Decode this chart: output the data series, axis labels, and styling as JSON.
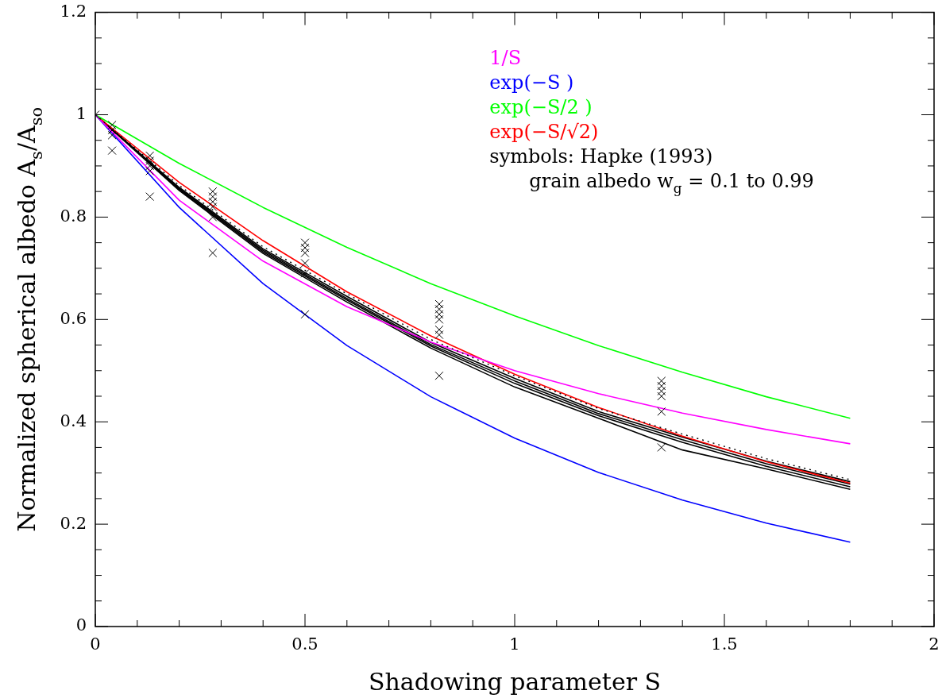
{
  "chart_data": {
    "type": "line",
    "xlabel": "Shadowing parameter S",
    "ylabel": "Normalized spherical albedo A$_{s}$/A$_{so}$",
    "xlim": [
      0,
      2
    ],
    "ylim": [
      0,
      1.2
    ],
    "xticks": [
      0,
      {
        "value": 0.1,
        "label": null
      },
      {
        "value": 0.2,
        "label": null
      },
      {
        "value": 0.3,
        "label": null
      },
      {
        "value": 0.4,
        "label": null
      },
      0.5,
      {
        "value": 0.6,
        "label": null
      },
      {
        "value": 0.7,
        "label": null
      },
      {
        "value": 0.8,
        "label": null
      },
      {
        "value": 0.9,
        "label": null
      },
      1,
      {
        "value": 1.1,
        "label": null
      },
      {
        "value": 1.2,
        "label": null
      },
      {
        "value": 1.3,
        "label": null
      },
      {
        "value": 1.4,
        "label": null
      },
      1.5,
      {
        "value": 1.6,
        "label": null
      },
      {
        "value": 1.7,
        "label": null
      },
      {
        "value": 1.8,
        "label": null
      },
      {
        "value": 1.9,
        "label": null
      },
      2
    ],
    "yticks": [
      0,
      {
        "value": 0.05,
        "label": null
      },
      {
        "value": 0.1,
        "label": null
      },
      {
        "value": 0.15,
        "label": null
      },
      0.2,
      {
        "value": 0.25,
        "label": null
      },
      {
        "value": 0.3,
        "label": null
      },
      {
        "value": 0.35,
        "label": null
      },
      0.4,
      {
        "value": 0.45,
        "label": null
      },
      {
        "value": 0.5,
        "label": null
      },
      {
        "value": 0.55,
        "label": null
      },
      0.6,
      {
        "value": 0.65,
        "label": null
      },
      {
        "value": 0.7,
        "label": null
      },
      {
        "value": 0.75,
        "label": null
      },
      0.8,
      {
        "value": 0.85,
        "label": null
      },
      {
        "value": 0.9,
        "label": null
      },
      {
        "value": 0.95,
        "label": null
      },
      1,
      {
        "value": 1.05,
        "label": null
      },
      {
        "value": 1.1,
        "label": null
      },
      {
        "value": 1.15,
        "label": null
      },
      1.2
    ],
    "x": [
      0,
      0.2,
      0.4,
      0.6,
      0.8,
      1.0,
      1.2,
      1.4,
      1.6,
      1.8
    ],
    "legend": "top right",
    "grid": false,
    "line_style": "solid",
    "marker": "none",
    "series": [
      {
        "name": "1/S",
        "color": "#ff00ff",
        "values": [
          1,
          0.833,
          0.714,
          0.625,
          0.556,
          0.5,
          0.455,
          0.417,
          0.385,
          0.357
        ]
      },
      {
        "name": "exp(−S )",
        "color": "#0000ff",
        "values": [
          1,
          0.819,
          0.67,
          0.549,
          0.449,
          0.368,
          0.301,
          0.247,
          0.202,
          0.165
        ]
      },
      {
        "name": "exp(−S/2 )",
        "color": "#00ff00",
        "values": [
          1,
          0.905,
          0.819,
          0.741,
          0.67,
          0.607,
          0.549,
          0.497,
          0.449,
          0.407
        ]
      },
      {
        "name": "exp(−S/√2)",
        "color": "#ff0000",
        "values": [
          1,
          0.868,
          0.754,
          0.654,
          0.568,
          0.493,
          0.428,
          0.372,
          0.322,
          0.28
        ]
      },
      {
        "color": "#000000",
        "values": [
          1,
          0.858,
          0.738,
          0.645,
          0.555,
          0.485,
          0.42,
          0.37,
          0.323,
          0.283
        ]
      },
      {
        "color": "#000000",
        "values": [
          1,
          0.856,
          0.735,
          0.641,
          0.551,
          0.48,
          0.416,
          0.365,
          0.318,
          0.278
        ]
      },
      {
        "color": "#000000",
        "values": [
          1,
          0.854,
          0.732,
          0.638,
          0.548,
          0.475,
          0.412,
          0.36,
          0.313,
          0.273
        ]
      },
      {
        "color": "#000000",
        "values": [
          1,
          0.852,
          0.729,
          0.634,
          0.544,
          0.468,
          0.407,
          0.345,
          0.308,
          0.268
        ]
      },
      {
        "color": "#000000",
        "line_style": "dotted",
        "values": [
          1,
          0.862,
          0.742,
          0.65,
          0.561,
          0.49,
          0.426,
          0.376,
          0.328,
          0.287
        ]
      },
      {
        "type": "scatter",
        "marker": "cross",
        "color": "#000000",
        "x": [
          0,
          0.04,
          0.04,
          0.04,
          0.04,
          0.13,
          0.13,
          0.13,
          0.13,
          0.13,
          0.28,
          0.28,
          0.28,
          0.28,
          0.28,
          0.28,
          0.5,
          0.5,
          0.5,
          0.5,
          0.5,
          0.5,
          0.82,
          0.82,
          0.82,
          0.82,
          0.82,
          0.82,
          0.82,
          1.35,
          1.35,
          1.35,
          1.35,
          1.35,
          1.35
        ],
        "values": [
          1,
          0.98,
          0.97,
          0.96,
          0.93,
          0.92,
          0.91,
          0.9,
          0.89,
          0.84,
          0.85,
          0.84,
          0.83,
          0.82,
          0.8,
          0.73,
          0.75,
          0.74,
          0.73,
          0.71,
          0.69,
          0.61,
          0.63,
          0.62,
          0.61,
          0.6,
          0.58,
          0.57,
          0.49,
          0.48,
          0.47,
          0.46,
          0.45,
          0.42,
          0.35
        ]
      }
    ],
    "annotations": [
      "symbols: Hapke (1993)",
      "grain albedo w$_{g}$ = 0.1 to 0.99"
    ]
  }
}
